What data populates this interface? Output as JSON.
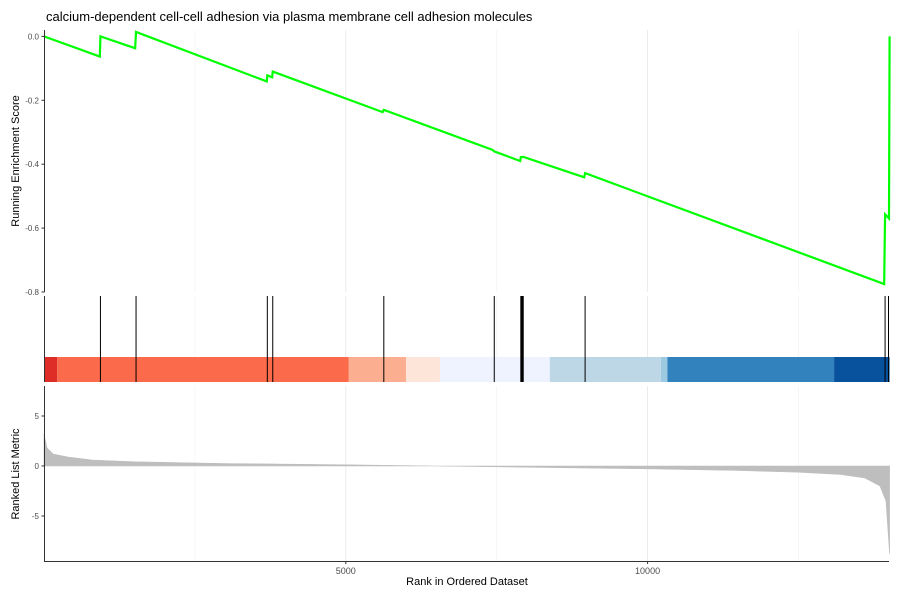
{
  "chart_data": {
    "type": "line",
    "title": "calcium-dependent cell-cell adhesion via plasma membrane cell adhesion molecules",
    "xlabel": "Rank in Ordered Dataset",
    "xlim": [
      0,
      14000
    ],
    "xticks": [
      5000,
      10000
    ],
    "xtick_labels": [
      "5000",
      "10000"
    ],
    "grid": true,
    "panels": [
      {
        "name": "running-score",
        "ylabel": "Running Enrichment Score",
        "ylim": [
          -0.8,
          0.02
        ],
        "yticks": [
          0.0,
          -0.2,
          -0.4,
          -0.6,
          -0.8
        ],
        "ytick_labels": [
          "0.0",
          "-0.2",
          "-0.4",
          "-0.6",
          "-0.8"
        ],
        "line_color": "#00ff00",
        "points": [
          [
            0,
            0.0
          ],
          [
            925,
            -0.063
          ],
          [
            935,
            0.0
          ],
          [
            1510,
            -0.037
          ],
          [
            1525,
            0.014
          ],
          [
            3690,
            -0.141
          ],
          [
            3700,
            -0.122
          ],
          [
            3780,
            -0.128
          ],
          [
            3790,
            -0.11
          ],
          [
            5610,
            -0.237
          ],
          [
            5630,
            -0.23
          ],
          [
            7430,
            -0.355
          ],
          [
            7460,
            -0.36
          ],
          [
            7890,
            -0.39
          ],
          [
            7900,
            -0.378
          ],
          [
            7940,
            -0.377
          ],
          [
            8950,
            -0.441
          ],
          [
            8965,
            -0.428
          ],
          [
            13920,
            -0.775
          ],
          [
            13935,
            -0.557
          ],
          [
            14000,
            -0.57
          ],
          [
            14010,
            0.0
          ]
        ]
      },
      {
        "name": "hits",
        "hit_ranks": [
          935,
          1525,
          3700,
          3790,
          5630,
          7460,
          7900,
          7910,
          7920,
          7930,
          7940,
          8965,
          13935,
          14010
        ],
        "color_bands": [
          {
            "from": 0,
            "to": 220,
            "color": "#de2d26"
          },
          {
            "from": 220,
            "to": 5050,
            "color": "#fb6a4a"
          },
          {
            "from": 5050,
            "to": 6000,
            "color": "#fcae91"
          },
          {
            "from": 6000,
            "to": 6560,
            "color": "#fee5d9"
          },
          {
            "from": 6560,
            "to": 8380,
            "color": "#eff3ff"
          },
          {
            "from": 8380,
            "to": 10220,
            "color": "#bdd7e7"
          },
          {
            "from": 10220,
            "to": 10330,
            "color": "#9ecae1"
          },
          {
            "from": 10330,
            "to": 13090,
            "color": "#3182bd"
          },
          {
            "from": 13090,
            "to": 14010,
            "color": "#08519c"
          }
        ]
      },
      {
        "name": "ranked-list",
        "ylabel": "Ranked List Metric",
        "ylim": [
          -9.5,
          8.0
        ],
        "yticks": [
          5,
          0,
          -5
        ],
        "ytick_labels": [
          "5",
          "0",
          "-5"
        ],
        "fill_color": "#bebebe",
        "metric_curve": [
          [
            0,
            3.2
          ],
          [
            50,
            1.8
          ],
          [
            150,
            1.2
          ],
          [
            400,
            0.9
          ],
          [
            800,
            0.6
          ],
          [
            1500,
            0.42
          ],
          [
            3000,
            0.25
          ],
          [
            5000,
            0.12
          ],
          [
            6500,
            0.0
          ],
          [
            8000,
            -0.12
          ],
          [
            10000,
            -0.28
          ],
          [
            11500,
            -0.45
          ],
          [
            12500,
            -0.62
          ],
          [
            13200,
            -0.85
          ],
          [
            13600,
            -1.2
          ],
          [
            13850,
            -2.0
          ],
          [
            13950,
            -3.5
          ],
          [
            14010,
            -8.8
          ]
        ]
      }
    ]
  }
}
